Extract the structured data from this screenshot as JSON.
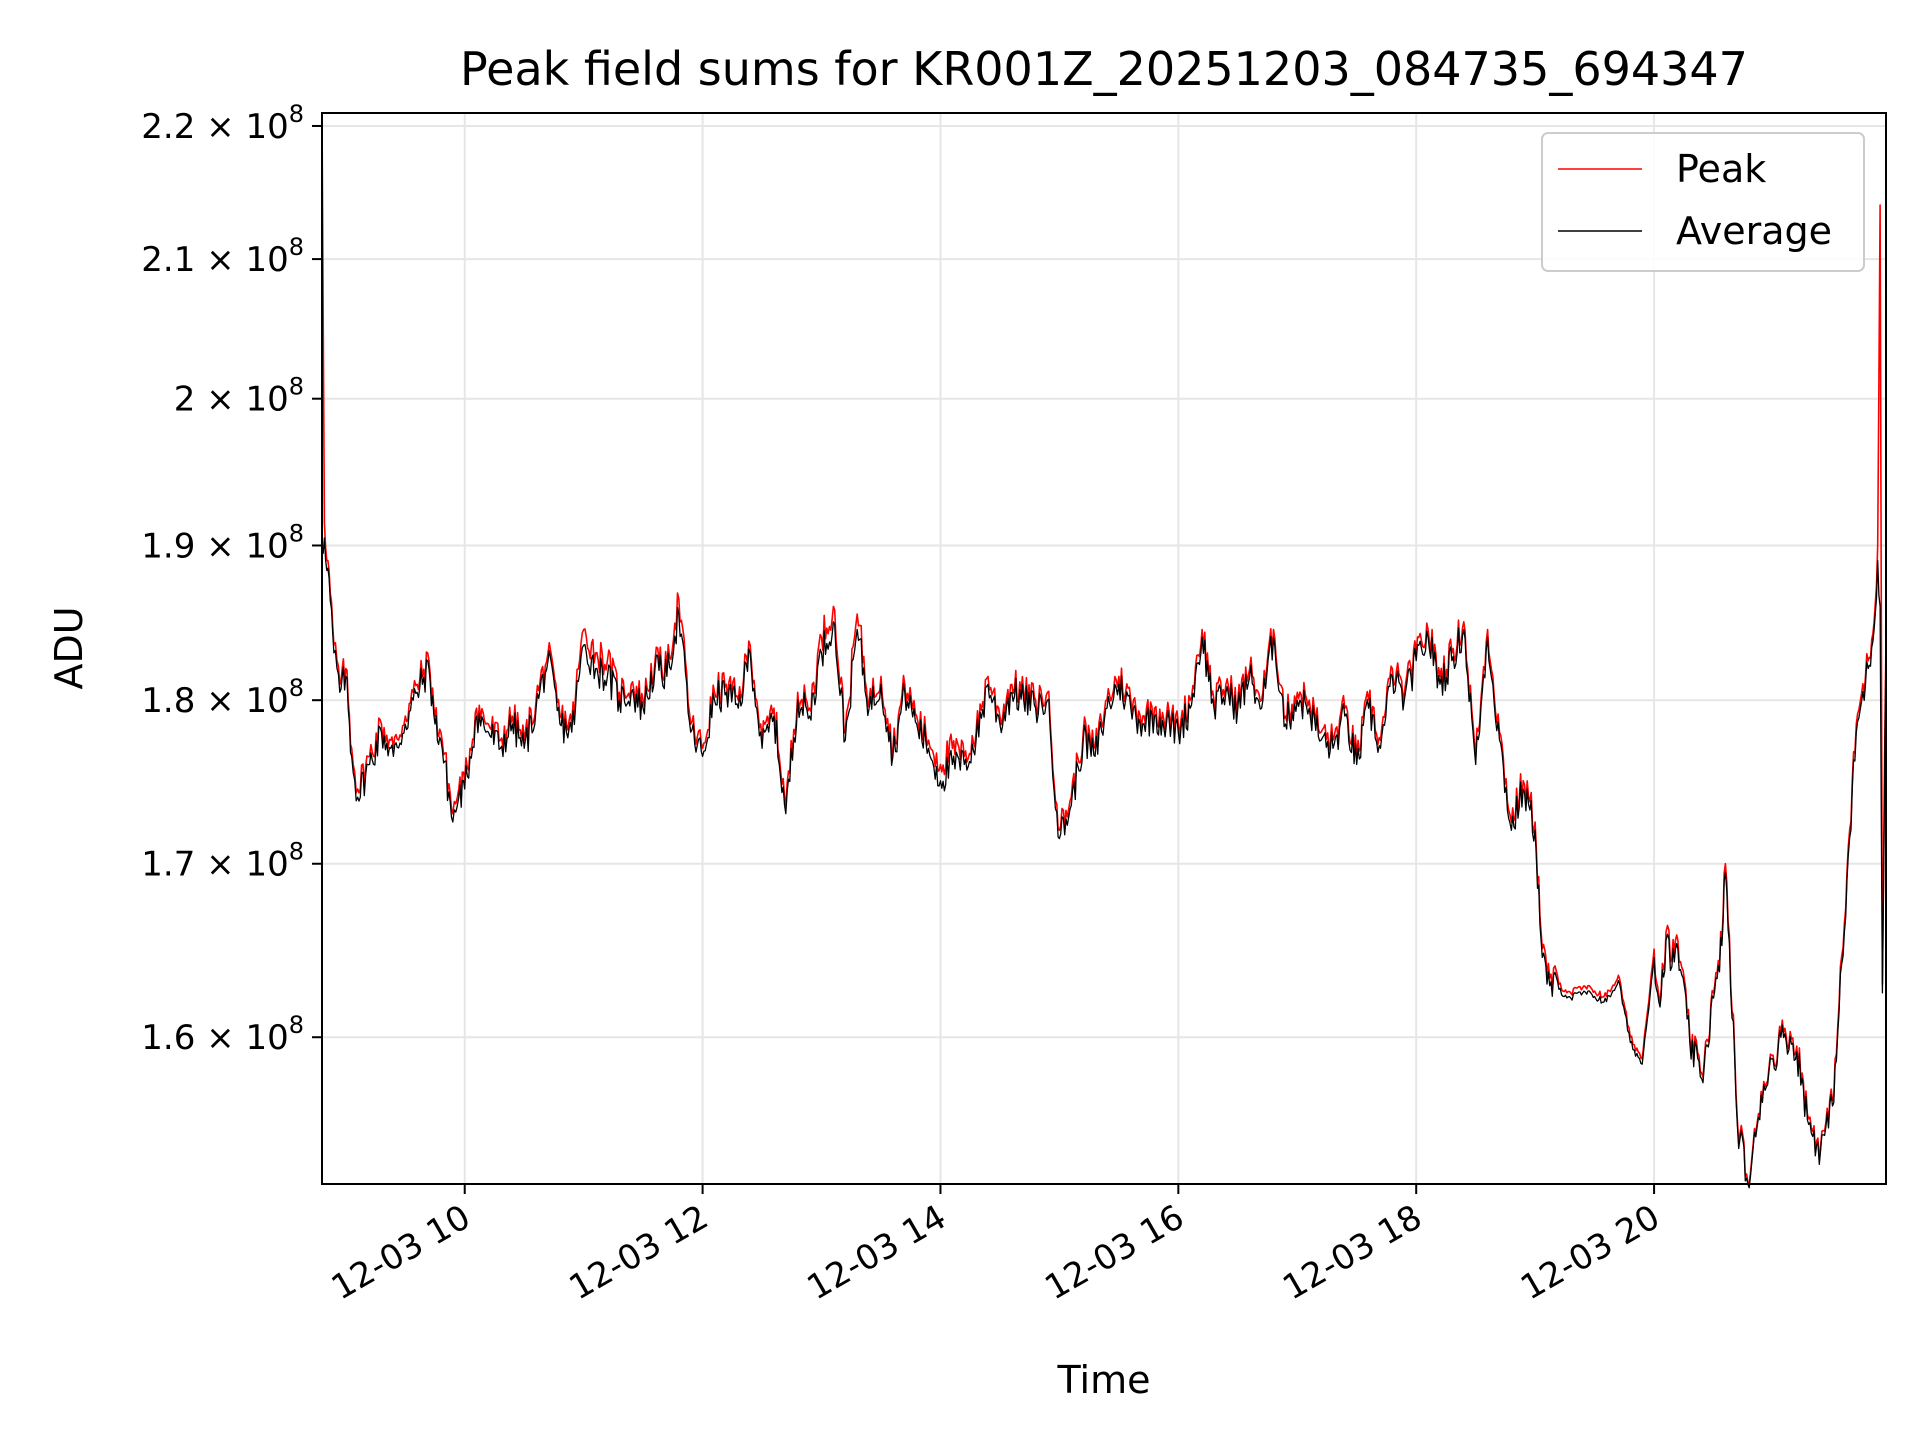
{
  "chart_data": {
    "type": "line",
    "title": "Peak field sums for KR001Z_20251203_084735_694347",
    "xlabel": "Time",
    "ylabel": "ADU",
    "y_scale": "log",
    "ylim": [
      152000000,
      221000000
    ],
    "xlim_hours": [
      8.8,
      21.95
    ],
    "grid": true,
    "legend_location": "top-right",
    "x_ticks": [
      {
        "hour": 10,
        "label": "12-03 10"
      },
      {
        "hour": 12,
        "label": "12-03 12"
      },
      {
        "hour": 14,
        "label": "12-03 14"
      },
      {
        "hour": 16,
        "label": "12-03 16"
      },
      {
        "hour": 18,
        "label": "12-03 18"
      },
      {
        "hour": 20,
        "label": "12-03 20"
      }
    ],
    "y_ticks": [
      {
        "value": 160000000,
        "mantissa": "1.6",
        "base": "× 10",
        "exp": "8"
      },
      {
        "value": 170000000,
        "mantissa": "1.7",
        "base": "× 10",
        "exp": "8"
      },
      {
        "value": 180000000,
        "mantissa": "1.8",
        "base": "× 10",
        "exp": "8"
      },
      {
        "value": 190000000,
        "mantissa": "1.9",
        "base": "× 10",
        "exp": "8"
      },
      {
        "value": 200000000,
        "mantissa": "2",
        "base": "× 10",
        "exp": "8"
      },
      {
        "value": 210000000,
        "mantissa": "2.1",
        "base": "× 10",
        "exp": "8"
      },
      {
        "value": 220000000,
        "mantissa": "2.2",
        "base": "× 10",
        "exp": "8"
      }
    ],
    "series": [
      {
        "name": "Peak",
        "color": "#ff0000",
        "x_hours": [
          8.8,
          8.82,
          8.85,
          8.9,
          8.95,
          9.0,
          9.05,
          9.1,
          9.2,
          9.3,
          9.4,
          9.5,
          9.6,
          9.7,
          9.75,
          9.8,
          9.9,
          9.95,
          10.0,
          10.1,
          10.2,
          10.3,
          10.4,
          10.5,
          10.6,
          10.7,
          10.8,
          10.9,
          11.0,
          11.1,
          11.2,
          11.3,
          11.4,
          11.5,
          11.6,
          11.7,
          11.8,
          11.9,
          12.0,
          12.1,
          12.2,
          12.3,
          12.4,
          12.5,
          12.6,
          12.7,
          12.8,
          12.9,
          13.0,
          13.1,
          13.2,
          13.3,
          13.4,
          13.5,
          13.6,
          13.7,
          13.8,
          13.9,
          14.0,
          14.1,
          14.2,
          14.3,
          14.4,
          14.5,
          14.6,
          14.7,
          14.8,
          14.9,
          15.0,
          15.1,
          15.2,
          15.3,
          15.4,
          15.5,
          15.6,
          15.7,
          15.8,
          15.9,
          16.0,
          16.1,
          16.2,
          16.3,
          16.4,
          16.5,
          16.6,
          16.7,
          16.8,
          16.9,
          17.0,
          17.1,
          17.2,
          17.3,
          17.4,
          17.5,
          17.6,
          17.7,
          17.8,
          17.9,
          18.0,
          18.1,
          18.2,
          18.3,
          18.4,
          18.5,
          18.6,
          18.7,
          18.8,
          18.9,
          19.0,
          19.05,
          19.1,
          19.2,
          19.3,
          19.4,
          19.5,
          19.6,
          19.7,
          19.8,
          19.9,
          20.0,
          20.05,
          20.1,
          20.15,
          20.2,
          20.3,
          20.4,
          20.5,
          20.55,
          20.6,
          20.7,
          20.8,
          20.9,
          21.0,
          21.1,
          21.2,
          21.3,
          21.4,
          21.5,
          21.6,
          21.7,
          21.8,
          21.85,
          21.88,
          21.9,
          21.92,
          21.95
        ],
        "values": [
          221000000,
          191500000,
          189000000,
          183500000,
          181000000,
          182000000,
          177000000,
          174500000,
          176500000,
          178500000,
          177000000,
          179000000,
          181000000,
          182500000,
          179000000,
          178000000,
          173000000,
          174500000,
          175000000,
          179500000,
          178500000,
          177500000,
          179000000,
          177500000,
          180000000,
          183000000,
          179000000,
          178500000,
          184500000,
          183000000,
          182500000,
          180500000,
          181000000,
          180000000,
          182500000,
          182000000,
          186500000,
          178500000,
          177000000,
          180500000,
          181000000,
          180000000,
          183500000,
          177500000,
          179500000,
          173500000,
          180500000,
          179500000,
          184000000,
          186000000,
          178000000,
          185500000,
          180000000,
          181500000,
          177000000,
          181000000,
          179000000,
          177500000,
          176000000,
          177000000,
          176500000,
          178000000,
          181500000,
          179000000,
          181000000,
          180500000,
          180000000,
          180500000,
          172000000,
          174000000,
          178000000,
          177000000,
          180000000,
          181500000,
          180000000,
          179000000,
          179500000,
          179000000,
          178500000,
          180000000,
          184500000,
          180000000,
          181000000,
          180000000,
          182000000,
          180000000,
          184500000,
          179000000,
          180500000,
          180000000,
          178000000,
          177500000,
          179500000,
          176500000,
          180000000,
          177500000,
          182000000,
          180500000,
          183000000,
          184500000,
          181500000,
          183000000,
          185000000,
          176500000,
          184500000,
          178000000,
          172500000,
          175000000,
          172500000,
          166000000,
          163500000,
          163000000,
          162500000,
          162800000,
          162600000,
          162300000,
          163500000,
          160000000,
          158800000,
          165000000,
          162000000,
          166000000,
          164500000,
          165500000,
          160000000,
          158000000,
          162500000,
          164000000,
          170000000,
          155500000,
          152000000,
          157000000,
          159000000,
          160500000,
          159500000,
          155500000,
          154000000,
          156500000,
          166500000,
          178500000,
          182500000,
          185000000,
          190000000,
          214000000,
          163000000,
          184000000
        ],
        "note": "red series visible only where it peeks above the average"
      },
      {
        "name": "Average",
        "color": "#000000",
        "x_hours": [
          8.8,
          8.82,
          8.85,
          8.9,
          8.95,
          9.0,
          9.05,
          9.1,
          9.2,
          9.3,
          9.4,
          9.5,
          9.6,
          9.7,
          9.75,
          9.8,
          9.9,
          9.95,
          10.0,
          10.1,
          10.2,
          10.3,
          10.4,
          10.5,
          10.6,
          10.7,
          10.8,
          10.9,
          11.0,
          11.1,
          11.2,
          11.3,
          11.4,
          11.5,
          11.6,
          11.7,
          11.8,
          11.9,
          12.0,
          12.1,
          12.2,
          12.3,
          12.4,
          12.5,
          12.6,
          12.7,
          12.8,
          12.9,
          13.0,
          13.1,
          13.2,
          13.3,
          13.4,
          13.5,
          13.6,
          13.7,
          13.8,
          13.9,
          14.0,
          14.1,
          14.2,
          14.3,
          14.4,
          14.5,
          14.6,
          14.7,
          14.8,
          14.9,
          15.0,
          15.1,
          15.2,
          15.3,
          15.4,
          15.5,
          15.6,
          15.7,
          15.8,
          15.9,
          16.0,
          16.1,
          16.2,
          16.3,
          16.4,
          16.5,
          16.6,
          16.7,
          16.8,
          16.9,
          17.0,
          17.1,
          17.2,
          17.3,
          17.4,
          17.5,
          17.6,
          17.7,
          17.8,
          17.9,
          18.0,
          18.1,
          18.2,
          18.3,
          18.4,
          18.5,
          18.6,
          18.7,
          18.8,
          18.9,
          19.0,
          19.05,
          19.1,
          19.2,
          19.3,
          19.4,
          19.5,
          19.6,
          19.7,
          19.8,
          19.9,
          20.0,
          20.05,
          20.1,
          20.15,
          20.2,
          20.3,
          20.4,
          20.5,
          20.55,
          20.6,
          20.7,
          20.8,
          20.9,
          21.0,
          21.1,
          21.2,
          21.3,
          21.4,
          21.5,
          21.6,
          21.7,
          21.8,
          21.85,
          21.88,
          21.9,
          21.92,
          21.95
        ],
        "values": [
          189500000,
          190500000,
          188500000,
          183000000,
          180500000,
          181500000,
          176500000,
          174000000,
          176000000,
          178000000,
          176500000,
          178500000,
          180500000,
          182000000,
          178500000,
          177500000,
          172500000,
          174000000,
          174500000,
          179000000,
          178000000,
          177000000,
          178500000,
          177000000,
          179500000,
          182500000,
          178500000,
          178000000,
          183500000,
          182000000,
          181500000,
          180000000,
          180500000,
          179500000,
          182000000,
          181500000,
          185500000,
          178000000,
          176500000,
          180000000,
          180500000,
          179500000,
          183000000,
          177000000,
          179000000,
          173000000,
          180000000,
          179000000,
          183000000,
          185000000,
          177500000,
          184500000,
          179500000,
          181000000,
          176500000,
          180500000,
          178500000,
          177000000,
          175000000,
          176000000,
          176000000,
          177500000,
          181000000,
          178500000,
          180500000,
          180000000,
          179500000,
          180000000,
          171500000,
          173500000,
          177500000,
          176500000,
          179500000,
          181000000,
          179500000,
          178500000,
          179000000,
          178500000,
          178000000,
          179500000,
          184000000,
          179500000,
          180500000,
          179500000,
          181500000,
          179500000,
          184000000,
          178500000,
          180000000,
          179500000,
          177500000,
          177000000,
          179000000,
          176000000,
          179500000,
          177000000,
          181500000,
          180000000,
          182500000,
          184000000,
          181000000,
          182500000,
          184500000,
          176000000,
          184000000,
          177500000,
          172000000,
          174500000,
          172000000,
          165500000,
          163000000,
          162700000,
          162200000,
          162500000,
          162300000,
          162000000,
          163200000,
          159700000,
          158500000,
          164500000,
          161700000,
          165500000,
          164000000,
          165000000,
          159700000,
          157700000,
          162200000,
          163700000,
          169500000,
          155200000,
          151800000,
          156800000,
          158800000,
          160200000,
          159200000,
          155200000,
          153800000,
          156200000,
          166000000,
          178000000,
          182000000,
          184500000,
          189000000,
          186000000,
          162500000,
          183500000
        ]
      }
    ]
  }
}
